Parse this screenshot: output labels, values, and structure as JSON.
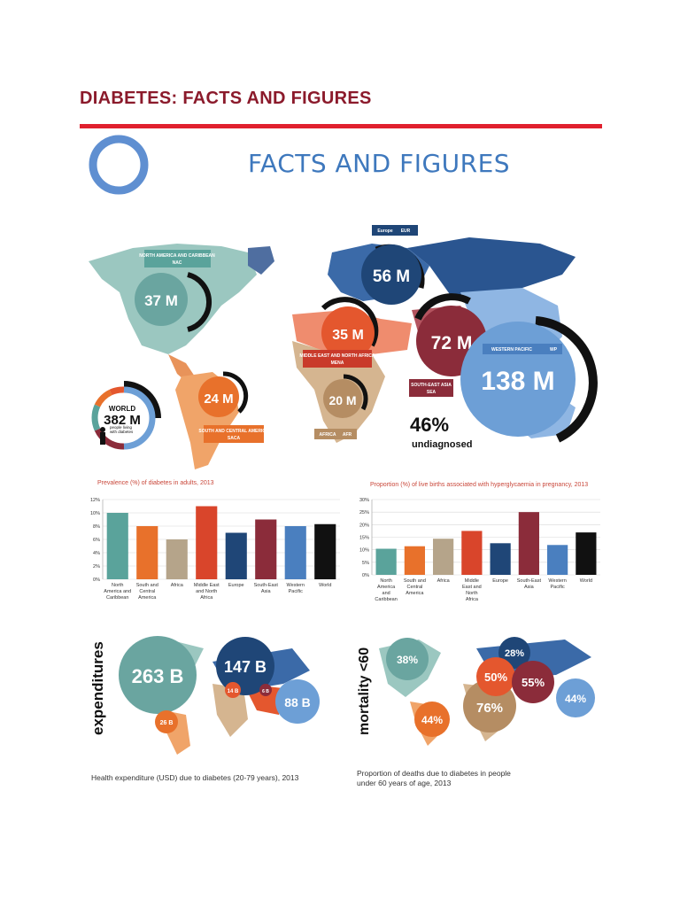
{
  "doc_title": "DIABETES: FACTS AND FIGURES",
  "infographic": {
    "title": "FACTS AND FIGURES",
    "colors": {
      "accent_red": "#e0202e",
      "title_maroon": "#8b1a2b",
      "blue": "#3e78bd"
    },
    "regions": [
      {
        "value": "37 M",
        "name": "NORTH AMERICA AND CARIBBEAN",
        "code": "NAC",
        "color": "#6aa5a0"
      },
      {
        "value": "56 M",
        "name": "Europe",
        "code": "EUR",
        "color": "#1f4677"
      },
      {
        "value": "35 M",
        "name": "MIDDLE EAST AND NORTH AFRICA",
        "code": "MENA",
        "color": "#e4572e"
      },
      {
        "value": "72 M",
        "name": "SOUTH-EAST ASIA",
        "code": "SEA",
        "color": "#8b2c3a"
      },
      {
        "value": "138 M",
        "name": "WESTERN PACIFIC",
        "code": "WP",
        "color": "#6d9fd6"
      },
      {
        "value": "24 M",
        "name": "SOUTH AND CENTRAL AMERICA",
        "code": "SACA",
        "color": "#e8712b"
      },
      {
        "value": "20 M",
        "name": "AFRICA",
        "code": "AFR",
        "color": "#b58d63"
      }
    ],
    "world": {
      "label": "WORLD",
      "value": "382 M",
      "sub": "people living with diabetes"
    },
    "undiagnosed": {
      "value": "46%",
      "label": "undiagnosed"
    }
  },
  "chart_data": [
    {
      "type": "bar",
      "title": "Prevalence (%) of diabetes in adults, 2013",
      "categories": [
        "North America and Caribbean",
        "South and Central America",
        "Africa",
        "Middle East and North Africa",
        "Europe",
        "South-East Asia",
        "Western Pacific",
        "World"
      ],
      "values": [
        10,
        8,
        6,
        11,
        7,
        9,
        8,
        8.3
      ],
      "ylim": [
        0,
        12
      ],
      "yticks": [
        "0%",
        "2%",
        "4%",
        "6%",
        "8%",
        "10%",
        "12%"
      ],
      "colors": [
        "#5aa39b",
        "#e8712b",
        "#b5a48a",
        "#d9452b",
        "#1f4677",
        "#8b2c3a",
        "#4a7fbf",
        "#111111"
      ]
    },
    {
      "type": "bar",
      "title": "Proportion (%) of live births associated with hyperglycaemia in pregnancy, 2013",
      "categories": [
        "North America and Caribbean",
        "South and Central America",
        "Africa",
        "Middle East and North Africa",
        "Europe",
        "South-East Asia",
        "Western Pacific",
        "World"
      ],
      "values": [
        10.4,
        11.4,
        14.4,
        17.5,
        12.6,
        25.0,
        11.9,
        16.9
      ],
      "ylim": [
        0,
        30
      ],
      "yticks": [
        "0%",
        "5%",
        "10%",
        "15%",
        "20%",
        "25%",
        "30%"
      ],
      "colors": [
        "#5aa39b",
        "#e8712b",
        "#b5a48a",
        "#d9452b",
        "#1f4677",
        "#8b2c3a",
        "#4a7fbf",
        "#111111"
      ]
    }
  ],
  "expenditures": {
    "side_label": "expenditures",
    "caption": "Health expenditure (USD) due to diabetes (20-79 years), 2013",
    "bubbles": [
      {
        "value": "263 B",
        "color": "#6aa5a0"
      },
      {
        "value": "147 B",
        "color": "#1f4677"
      },
      {
        "value": "88 B",
        "color": "#6d9fd6"
      },
      {
        "value": "26 B",
        "color": "#e8712b"
      },
      {
        "value": "14 B",
        "color": "#e4572e"
      },
      {
        "value": "6 B",
        "color": "#8b2c3a"
      }
    ]
  },
  "mortality": {
    "side_label": "mortality <60",
    "caption_line1": "Proportion of deaths due to diabetes in people",
    "caption_line2": "under 60 years of age, 2013",
    "bubbles": [
      {
        "value": "38%",
        "color": "#6aa5a0"
      },
      {
        "value": "28%",
        "color": "#1f4677"
      },
      {
        "value": "50%",
        "color": "#e4572e"
      },
      {
        "value": "55%",
        "color": "#8b2c3a"
      },
      {
        "value": "76%",
        "color": "#b58d63"
      },
      {
        "value": "44%",
        "color": "#e8712b"
      },
      {
        "value": "44%",
        "color": "#6d9fd6"
      }
    ]
  }
}
